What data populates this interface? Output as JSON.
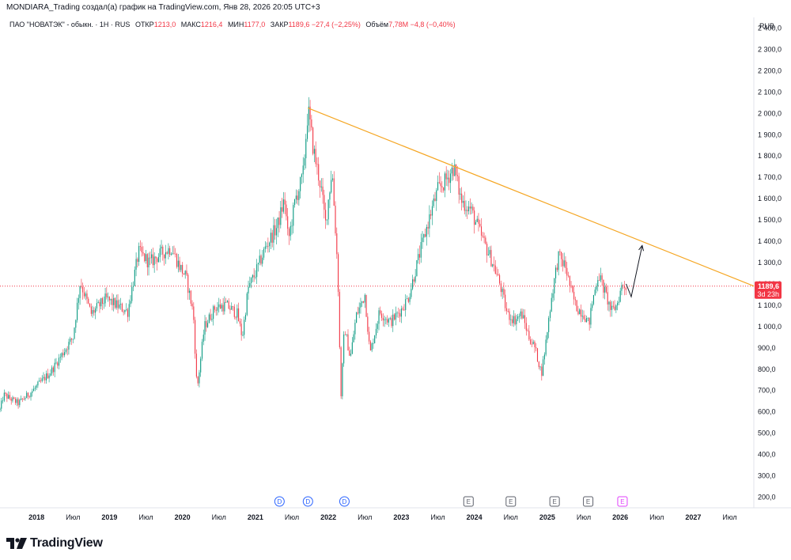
{
  "caption": "MONDIARA_Trading создал(а) график на TradingView.com, Янв 28, 2026 20:05 UTC+3",
  "legend": {
    "symbol": "ПАО \"НОВАТЭК\" - обыкн. · 1Н · RUS",
    "open_label": "ОТКР",
    "open": "1213,0",
    "high_label": "МАКС",
    "high": "1216,4",
    "low_label": "МИН",
    "low": "1177,0",
    "close_label": "ЗАКР",
    "close": "1189,6",
    "change": "−27,4 (−2,25%)",
    "volume_label": "Объём",
    "volume": "7,78M",
    "volume_change": "−4,8 (−0,40%)"
  },
  "brand": "TradingView",
  "colors": {
    "up": "#089981",
    "down": "#f23645",
    "trend": "#f5a623",
    "price_line": "#f23645",
    "axis_text": "#131722",
    "dividend": "#2962ff",
    "earnings": "#5d606b",
    "combo": "#e040fb"
  },
  "chart_data": {
    "type": "candlestick",
    "title": "ПАО \"НОВАТЭК\" - обыкн.",
    "currency": "RUB",
    "interval": "1Н",
    "ylim": [
      150,
      2450
    ],
    "y_ticks": [
      "200,0",
      "300,0",
      "400,0",
      "500,0",
      "600,0",
      "700,0",
      "800,0",
      "900,0",
      "1 000,0",
      "1 100,0",
      "1 200,0",
      "1 300,0",
      "1 400,0",
      "1 500,0",
      "1 600,0",
      "1 700,0",
      "1 800,0",
      "1 900,0",
      "2 000,0",
      "2 100,0",
      "2 200,0",
      "2 300,0",
      "2 400,0"
    ],
    "x_range": [
      2017.5,
      2027.83
    ],
    "x_ticks": [
      {
        "t": 2018.0,
        "label": "2018",
        "bold": true
      },
      {
        "t": 2018.5,
        "label": "Июл"
      },
      {
        "t": 2019.0,
        "label": "2019",
        "bold": true
      },
      {
        "t": 2019.5,
        "label": "Июл"
      },
      {
        "t": 2020.0,
        "label": "2020",
        "bold": true
      },
      {
        "t": 2020.5,
        "label": "Июл"
      },
      {
        "t": 2021.0,
        "label": "2021",
        "bold": true
      },
      {
        "t": 2021.5,
        "label": "Июл"
      },
      {
        "t": 2022.0,
        "label": "2022",
        "bold": true
      },
      {
        "t": 2022.5,
        "label": "Июл"
      },
      {
        "t": 2023.0,
        "label": "2023",
        "bold": true
      },
      {
        "t": 2023.5,
        "label": "Июл"
      },
      {
        "t": 2024.0,
        "label": "2024",
        "bold": true
      },
      {
        "t": 2024.5,
        "label": "Июл"
      },
      {
        "t": 2025.0,
        "label": "2025",
        "bold": true
      },
      {
        "t": 2025.5,
        "label": "Июл"
      },
      {
        "t": 2026.0,
        "label": "2026",
        "bold": true
      },
      {
        "t": 2026.5,
        "label": "Июл"
      },
      {
        "t": 2027.0,
        "label": "2027",
        "bold": true
      },
      {
        "t": 2027.5,
        "label": "Июл"
      }
    ],
    "price_anchors": [
      [
        2017.5,
        610
      ],
      [
        2017.55,
        680
      ],
      [
        2017.75,
        640
      ],
      [
        2017.95,
        700
      ],
      [
        2018.2,
        790
      ],
      [
        2018.5,
        950
      ],
      [
        2018.6,
        1210
      ],
      [
        2018.75,
        1060
      ],
      [
        2018.95,
        1130
      ],
      [
        2019.15,
        1090
      ],
      [
        2019.25,
        1070
      ],
      [
        2019.4,
        1350
      ],
      [
        2019.55,
        1300
      ],
      [
        2019.7,
        1340
      ],
      [
        2019.85,
        1370
      ],
      [
        2019.95,
        1290
      ],
      [
        2020.05,
        1230
      ],
      [
        2020.15,
        1060
      ],
      [
        2020.2,
        700
      ],
      [
        2020.3,
        1000
      ],
      [
        2020.45,
        1090
      ],
      [
        2020.6,
        1100
      ],
      [
        2020.75,
        1060
      ],
      [
        2020.82,
        950
      ],
      [
        2020.9,
        1180
      ],
      [
        2021.0,
        1250
      ],
      [
        2021.15,
        1380
      ],
      [
        2021.3,
        1470
      ],
      [
        2021.4,
        1600
      ],
      [
        2021.45,
        1400
      ],
      [
        2021.55,
        1600
      ],
      [
        2021.65,
        1700
      ],
      [
        2021.72,
        2020
      ],
      [
        2021.8,
        1820
      ],
      [
        2021.9,
        1650
      ],
      [
        2021.96,
        1480
      ],
      [
        2022.05,
        1740
      ],
      [
        2022.13,
        1250
      ],
      [
        2022.17,
        660
      ],
      [
        2022.22,
        1000
      ],
      [
        2022.3,
        850
      ],
      [
        2022.38,
        1050
      ],
      [
        2022.5,
        1150
      ],
      [
        2022.57,
        870
      ],
      [
        2022.7,
        1070
      ],
      [
        2022.85,
        1020
      ],
      [
        2023.0,
        1080
      ],
      [
        2023.1,
        1140
      ],
      [
        2023.25,
        1340
      ],
      [
        2023.4,
        1530
      ],
      [
        2023.5,
        1640
      ],
      [
        2023.6,
        1680
      ],
      [
        2023.72,
        1750
      ],
      [
        2023.82,
        1590
      ],
      [
        2023.95,
        1550
      ],
      [
        2024.1,
        1420
      ],
      [
        2024.25,
        1300
      ],
      [
        2024.35,
        1200
      ],
      [
        2024.45,
        1060
      ],
      [
        2024.55,
        1030
      ],
      [
        2024.65,
        1060
      ],
      [
        2024.75,
        950
      ],
      [
        2024.83,
        900
      ],
      [
        2024.92,
        780
      ],
      [
        2024.97,
        900
      ],
      [
        2025.05,
        1120
      ],
      [
        2025.15,
        1330
      ],
      [
        2025.25,
        1280
      ],
      [
        2025.33,
        1160
      ],
      [
        2025.4,
        1090
      ],
      [
        2025.5,
        1060
      ],
      [
        2025.57,
        1010
      ],
      [
        2025.62,
        1120
      ],
      [
        2025.7,
        1250
      ],
      [
        2025.8,
        1150
      ],
      [
        2025.88,
        1070
      ],
      [
        2025.95,
        1100
      ],
      [
        2026.03,
        1200
      ],
      [
        2026.08,
        1190
      ]
    ],
    "trendline": {
      "from": [
        2021.72,
        2025
      ],
      "to": [
        2027.83,
        1190
      ]
    },
    "projection_arrow": [
      [
        2026.08,
        1200
      ],
      [
        2026.15,
        1140
      ],
      [
        2026.3,
        1380
      ]
    ],
    "current_price": {
      "value": 1189.6,
      "label": "1189,6",
      "countdown": "3d 23h"
    },
    "events": [
      {
        "t": 2021.33,
        "type": "dividend",
        "label": "D"
      },
      {
        "t": 2021.72,
        "type": "dividend",
        "label": "D"
      },
      {
        "t": 2022.22,
        "type": "dividend",
        "label": "D"
      },
      {
        "t": 2023.92,
        "type": "earnings",
        "label": "E"
      },
      {
        "t": 2024.5,
        "type": "earnings",
        "label": "E"
      },
      {
        "t": 2025.1,
        "type": "earnings",
        "label": "E"
      },
      {
        "t": 2025.56,
        "type": "earnings",
        "label": "E"
      },
      {
        "t": 2026.03,
        "type": "combo",
        "label": "E"
      }
    ]
  }
}
